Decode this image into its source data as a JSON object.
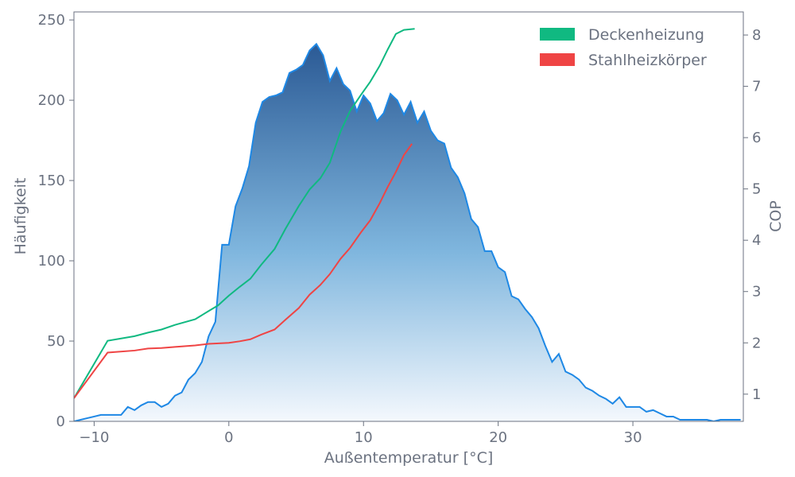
{
  "chart_data": {
    "type": "area",
    "title": "",
    "xlabel": "Außentemperatur [°C]",
    "ylabel_left": "Häufigkeit",
    "ylabel_right": "COP",
    "xlim": [
      -11.5,
      38.2
    ],
    "ylim_left": [
      0,
      255
    ],
    "ylim_right": [
      0.47,
      8.45
    ],
    "x_ticks": [
      -10,
      0,
      10,
      20,
      30
    ],
    "x_tick_labels": [
      "−10",
      "0",
      "10",
      "20",
      "30"
    ],
    "y_left_ticks": [
      0,
      50,
      100,
      150,
      200,
      250
    ],
    "y_left_tick_labels": [
      "0",
      "50",
      "100",
      "150",
      "200",
      "250"
    ],
    "y_right_ticks": [
      1,
      2,
      3,
      4,
      5,
      6,
      7,
      8
    ],
    "y_right_tick_labels": [
      "1",
      "2",
      "3",
      "4",
      "5",
      "6",
      "7",
      "8"
    ],
    "grid": false,
    "legend_position": "top-right",
    "frequency": {
      "color": "#1e88e5",
      "fill_top": "#2b5a95",
      "fill_bottom": "#f4f8fd",
      "x": [
        -11.5,
        -11,
        -10.5,
        -10,
        -9.5,
        -9,
        -8.5,
        -8,
        -7.5,
        -7,
        -6.5,
        -6,
        -5.5,
        -5,
        -4.5,
        -4,
        -3.5,
        -3,
        -2.5,
        -2,
        -1.5,
        -1,
        -0.5,
        0,
        0.5,
        1,
        1.5,
        2,
        2.5,
        3,
        3.5,
        4,
        4.5,
        5,
        5.5,
        6,
        6.5,
        7,
        7.5,
        8,
        8.5,
        9,
        9.5,
        10,
        10.5,
        11,
        11.5,
        12,
        12.5,
        13,
        13.5,
        14,
        14.5,
        15,
        15.5,
        16,
        16.5,
        17,
        17.5,
        18,
        18.5,
        19,
        19.5,
        20,
        20.5,
        21,
        21.5,
        22,
        22.5,
        23,
        23.5,
        24,
        24.5,
        25,
        25.5,
        26,
        26.5,
        27,
        27.5,
        28,
        28.5,
        29,
        29.5,
        30,
        30.5,
        31,
        31.5,
        32,
        32.5,
        33,
        33.5,
        34,
        34.5,
        35,
        35.5,
        36,
        36.5,
        37,
        37.5,
        38
      ],
      "values": [
        0,
        1,
        2,
        3,
        4,
        4,
        4,
        4,
        9,
        7,
        10,
        12,
        12,
        9,
        11,
        16,
        18,
        26,
        30,
        37,
        53,
        62,
        110,
        110,
        134,
        145,
        159,
        186,
        199,
        202,
        203,
        205,
        217,
        219,
        222,
        231,
        235,
        228,
        212,
        220,
        210,
        206,
        193,
        203,
        198,
        187,
        192,
        204,
        200,
        191,
        199,
        186,
        193,
        181,
        175,
        173,
        158,
        152,
        142,
        126,
        121,
        106,
        106,
        96,
        93,
        78,
        76,
        70,
        65,
        58,
        47,
        37,
        42,
        31,
        29,
        26,
        21,
        19,
        16,
        14,
        11,
        15,
        9,
        9,
        9,
        6,
        7,
        5,
        3,
        3,
        1,
        1,
        1,
        1,
        1,
        0,
        1,
        1,
        1,
        1
      ]
    },
    "series": [
      {
        "name": "Deckenheizung",
        "axis": "right",
        "color": "#10b981",
        "x": [
          -11.5,
          -9,
          -7,
          -6,
          -5,
          -4,
          -2.5,
          -1.5,
          -0.8,
          0,
          0.8,
          1.6,
          2.4,
          3.4,
          4.2,
          5.2,
          6,
          6.8,
          7.5,
          8.3,
          9,
          9.8,
          10.5,
          11.2,
          11.8,
          12.4,
          13,
          13.8
        ],
        "values": [
          0.92,
          2.04,
          2.13,
          2.2,
          2.26,
          2.35,
          2.46,
          2.62,
          2.73,
          2.92,
          3.09,
          3.25,
          3.52,
          3.83,
          4.22,
          4.67,
          4.99,
          5.21,
          5.51,
          6.12,
          6.52,
          6.83,
          7.09,
          7.4,
          7.72,
          8.02,
          8.1,
          8.12
        ]
      },
      {
        "name": "Stahlheizkörper",
        "axis": "right",
        "color": "#ef4444",
        "x": [
          -11.5,
          -9,
          -7,
          -6,
          -5,
          -4,
          -2.5,
          -1.5,
          0,
          0.8,
          1.6,
          2.4,
          3.4,
          4.2,
          5.2,
          6,
          6.8,
          7.5,
          8.3,
          9,
          9.8,
          10.5,
          11.2,
          11.8,
          12.4,
          13,
          13.6
        ],
        "values": [
          0.92,
          1.81,
          1.85,
          1.89,
          1.9,
          1.92,
          1.95,
          1.98,
          2.0,
          2.03,
          2.07,
          2.16,
          2.26,
          2.45,
          2.68,
          2.94,
          3.13,
          3.34,
          3.64,
          3.85,
          4.15,
          4.39,
          4.72,
          5.04,
          5.33,
          5.66,
          5.88
        ]
      }
    ]
  }
}
